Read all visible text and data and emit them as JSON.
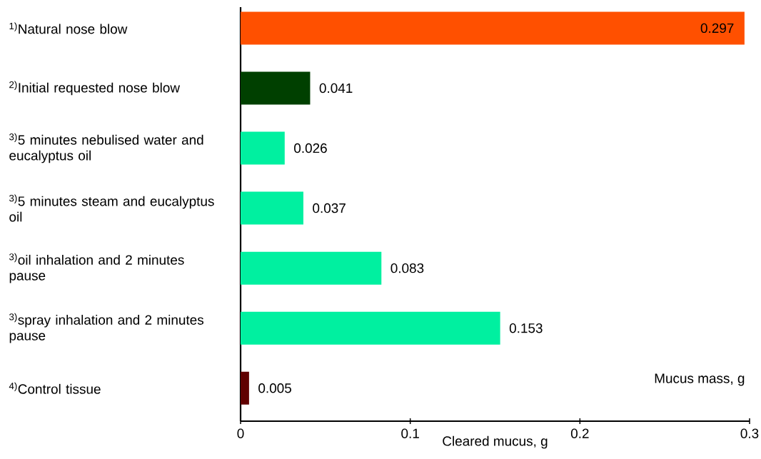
{
  "chart_data": {
    "type": "bar",
    "orientation": "horizontal",
    "categories": [
      "$^{1)}$Natural nose blow",
      "$^{2)}$Initial requested nose blow",
      "$^{3)}$5 minutes nebulised water and eucalyptus oil",
      "$^{3)}$5 minutes steam and eucalyptus oil",
      "$^{3)}$oil inhalation and 2 minutes pause",
      "$^{3)}$spray inhalation and 2 minutes pause",
      "$^{4)}$Control tissue"
    ],
    "values": [
      0.297,
      0.041,
      0.026,
      0.037,
      0.083,
      0.153,
      0.005
    ],
    "colors": [
      "#ff5000",
      "#004000",
      "#00f0a0",
      "#00f0a0",
      "#00f0a0",
      "#00f0a0",
      "#600000"
    ],
    "xlim": [
      0,
      0.3
    ],
    "xticks": [
      0,
      0.1,
      0.2,
      0.3
    ],
    "xlabel": "Cleared mucus, g",
    "annotations": [
      "Mucus mass, g"
    ],
    "data_labels": true
  }
}
